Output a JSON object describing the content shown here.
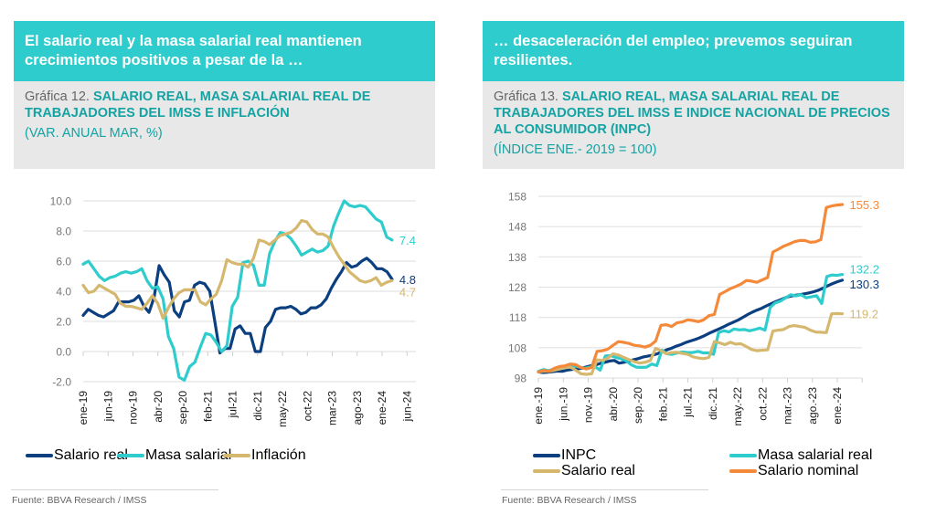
{
  "left": {
    "banner": "El salario real y la masa salarial real mantienen crecimientos positivos a pesar de la …",
    "chart_prefix": "Gráfica 12.",
    "chart_title": "SALARIO REAL, MASA SALARIAL REAL DE TRABAJADORES DEL IMSS E INFLACIÓN",
    "units": "(VAR. ANUAL MAR, %)",
    "source": "Fuente: BBVA Research / IMSS"
  },
  "right": {
    "banner": "… desaceleración del empleo; prevemos seguiran resilientes.",
    "chart_prefix": "Gráfica 13.",
    "chart_title": "SALARIO REAL, MASA SALARIAL REAL DE TRABAJADORES DEL IMSS E INDICE NACIONAL DE PRECIOS AL CONSUMIDOR (INPC)",
    "units": "(ÍNDICE ENE.- 2019 = 100)",
    "source": "Fuente: BBVA Research / IMSS"
  },
  "chart_data": [
    {
      "type": "line",
      "title": "SALARIO REAL, MASA SALARIAL REAL DE TRABAJADORES DEL IMSS E INFLACIÓN",
      "xlabel": "",
      "ylabel": "Var. anual %",
      "ylim": [
        -2,
        10
      ],
      "yticks": [
        "10.0",
        "8.0",
        "6.0",
        "4.0",
        "2.0",
        "0.0",
        "-2.0"
      ],
      "ytick_values": [
        10,
        8,
        6,
        4,
        2,
        0,
        -2
      ],
      "xticks": [
        "ene-19",
        "jun-19",
        "nov-19",
        "abr-20",
        "sep-20",
        "feb-21",
        "jul-21",
        "dic-21",
        "may-22",
        "oct-22",
        "mar-23",
        "ago-23",
        "ene-24",
        "jun-24"
      ],
      "x_start": "ene-19",
      "x_months_total": 65,
      "grid": true,
      "legend": "bottom",
      "series": [
        {
          "name": "Salario real",
          "color": "#0b3f7f",
          "end_label": "4.8",
          "values": [
            2.4,
            2.8,
            2.6,
            2.4,
            2.3,
            2.5,
            2.7,
            3.3,
            3.3,
            3.3,
            3.4,
            3.7,
            3.0,
            2.6,
            3.6,
            5.7,
            5.1,
            4.6,
            2.7,
            2.3,
            3.3,
            3.4,
            4.4,
            4.6,
            4.5,
            4.0,
            2.0,
            -0.1,
            0.2,
            0.2,
            1.5,
            1.7,
            1.2,
            1.2,
            0.0,
            0.0,
            1.6,
            2.0,
            2.8,
            2.9,
            2.9,
            3.0,
            2.8,
            2.5,
            2.6,
            2.9,
            2.9,
            3.1,
            3.5,
            4.2,
            4.8,
            5.3,
            5.9,
            5.6,
            5.7,
            6.0,
            6.2,
            5.9,
            5.5,
            5.5,
            5.3,
            4.8
          ]
        },
        {
          "name": "Masa salarial",
          "color": "#2ecccc",
          "end_label": "7.4",
          "values": [
            5.8,
            6.0,
            5.5,
            5.0,
            4.7,
            4.9,
            5.0,
            5.2,
            5.3,
            5.2,
            5.3,
            5.5,
            4.7,
            4.2,
            4.3,
            3.5,
            1.0,
            0.2,
            -1.7,
            -1.9,
            -1.0,
            -0.7,
            0.3,
            1.2,
            1.1,
            0.6,
            0.0,
            0.4,
            3.0,
            3.6,
            5.9,
            6.0,
            5.7,
            4.4,
            4.4,
            6.5,
            7.3,
            7.9,
            7.8,
            7.5,
            7.0,
            6.4,
            6.6,
            6.8,
            6.6,
            6.7,
            7.0,
            8.3,
            9.2,
            10.0,
            9.7,
            9.6,
            9.7,
            9.6,
            9.2,
            8.8,
            8.6,
            7.6,
            7.4
          ]
        },
        {
          "name": "Inflación",
          "color": "#d5b86e",
          "end_label": "4.7",
          "values": [
            4.4,
            3.9,
            4.0,
            4.4,
            4.2,
            4.0,
            3.8,
            3.2,
            3.0,
            3.0,
            2.9,
            2.8,
            3.2,
            3.7,
            3.2,
            2.2,
            2.9,
            3.5,
            3.9,
            4.1,
            4.1,
            4.1,
            3.3,
            3.1,
            3.5,
            3.8,
            4.7,
            6.1,
            5.9,
            5.8,
            5.8,
            5.6,
            6.2,
            7.4,
            7.3,
            7.1,
            7.4,
            7.7,
            7.8,
            7.9,
            8.2,
            8.7,
            8.6,
            8.1,
            7.8,
            7.8,
            7.6,
            6.9,
            6.3,
            5.8,
            5.3,
            5.0,
            4.7,
            4.6,
            4.7,
            4.9,
            4.4,
            4.6,
            4.7
          ]
        }
      ]
    },
    {
      "type": "line",
      "title": "SALARIO REAL, MASA SALARIAL REAL DE TRABAJADORES DEL IMSS E INDICE NACIONAL DE PRECIOS AL CONSUMIDOR (INPC)",
      "xlabel": "",
      "ylabel": "Índice ene.-2019 = 100",
      "ylim": [
        98,
        158
      ],
      "yticks": [
        "158",
        "148",
        "138",
        "128",
        "118",
        "108",
        "98"
      ],
      "ytick_values": [
        158,
        148,
        138,
        128,
        118,
        108,
        98
      ],
      "xticks": [
        "ene.-19",
        "jun.-19",
        "nov.-19",
        "abr.-20",
        "sep.-20",
        "feb.-21",
        "jul.-21",
        "dic.-21",
        "may.-22",
        "oct.-22",
        "mar.-23",
        "ago.-23",
        "ene.-24"
      ],
      "x_start": "ene.-19",
      "x_months_total": 64,
      "grid": true,
      "legend": "bottom",
      "series": [
        {
          "name": "INPC",
          "color": "#0b3f7f",
          "end_label": "130.3",
          "values": [
            100.0,
            99.8,
            99.9,
            100.1,
            100.3,
            100.2,
            100.6,
            100.8,
            101.0,
            101.2,
            101.6,
            102.0,
            102.3,
            102.8,
            103.2,
            103.6,
            103.8,
            102.9,
            103.2,
            103.6,
            104.0,
            104.4,
            104.9,
            105.2,
            105.5,
            106.0,
            106.6,
            107.3,
            107.8,
            108.5,
            109.0,
            109.7,
            110.2,
            110.7,
            111.3,
            112.0,
            112.8,
            113.5,
            114.2,
            114.9,
            115.7,
            116.4,
            117.1,
            118.0,
            118.9,
            119.7,
            120.4,
            121.0,
            121.8,
            122.5,
            123.2,
            123.8,
            124.5,
            125.0,
            125.3,
            125.5,
            125.8,
            126.1,
            126.5,
            127.0,
            127.7,
            128.5,
            129.2,
            129.8,
            130.3
          ]
        },
        {
          "name": "Masa salarial real",
          "color": "#2ecccc",
          "end_label": "132.2",
          "values": [
            100.2,
            100.8,
            100.4,
            101.0,
            101.5,
            101.3,
            101.9,
            102.0,
            101.6,
            101.2,
            101.6,
            101.7,
            100.6,
            105.3,
            105.4,
            104.8,
            104.4,
            103.7,
            102.4,
            101.6,
            101.5,
            101.6,
            102.6,
            102.1,
            107.2,
            106.0,
            105.8,
            106.3,
            106.6,
            106.4,
            106.4,
            106.8,
            106.3,
            106.3,
            105.8,
            113.0,
            113.6,
            113.2,
            114.2,
            113.9,
            114.0,
            113.6,
            114.0,
            114.5,
            113.8,
            121.3,
            122.8,
            123.4,
            124.5,
            125.5,
            125.1,
            125.5,
            124.5,
            124.8,
            125.2,
            122.6,
            131.5,
            132.0,
            131.9,
            132.2
          ]
        },
        {
          "name": "Salario real",
          "color": "#d5b86e",
          "end_label": "119.2",
          "values": [
            100.0,
            100.3,
            100.2,
            100.6,
            101.0,
            101.4,
            101.6,
            100.6,
            99.4,
            99.2,
            99.4,
            104.0,
            103.8,
            104.5,
            106.0,
            105.6,
            104.8,
            104.1,
            103.4,
            102.9,
            103.2,
            103.8,
            107.8,
            107.0,
            106.0,
            106.4,
            106.5,
            106.1,
            105.8,
            105.0,
            104.6,
            104.4,
            104.8,
            110.0,
            109.6,
            109.0,
            109.8,
            109.2,
            109.3,
            108.4,
            107.4,
            107.0,
            107.2,
            107.3,
            113.5,
            113.8,
            114.0,
            115.0,
            115.3,
            115.0,
            114.7,
            113.8,
            113.2,
            113.1,
            113.0,
            119.2,
            119.3,
            119.2
          ]
        },
        {
          "name": "Salario nominal",
          "color": "#f5893a",
          "end_label": "155.3",
          "values": [
            100.0,
            100.5,
            100.2,
            101.2,
            101.8,
            102.0,
            102.6,
            102.4,
            101.4,
            101.0,
            101.5,
            106.8,
            107.0,
            107.5,
            108.8,
            110.0,
            109.8,
            109.4,
            108.8,
            108.6,
            108.2,
            108.8,
            110.2,
            115.4,
            115.6,
            115.0,
            116.2,
            116.5,
            117.2,
            117.0,
            116.6,
            117.2,
            118.6,
            119.0,
            125.6,
            126.5,
            127.5,
            128.2,
            129.0,
            130.2,
            130.0,
            129.6,
            130.4,
            131.2,
            139.6,
            140.5,
            141.5,
            142.2,
            143.0,
            143.4,
            143.4,
            142.8,
            143.0,
            143.7,
            154.3,
            154.8,
            155.1,
            155.3
          ]
        }
      ]
    }
  ]
}
